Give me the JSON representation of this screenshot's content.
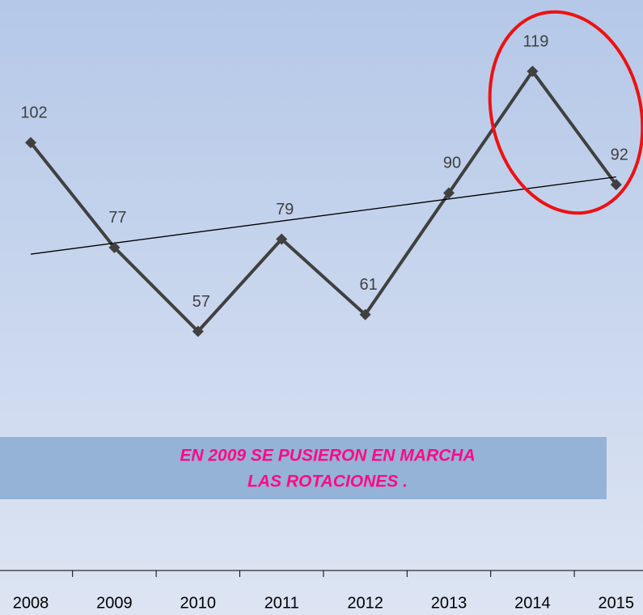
{
  "chart_data": {
    "type": "line",
    "categories": [
      "2008",
      "2009",
      "2010",
      "2011",
      "2012",
      "2013",
      "2014",
      "2015"
    ],
    "series": [
      {
        "color": "#404040",
        "values": [
          102,
          77,
          57,
          79,
          61,
          90,
          119,
          92
        ]
      }
    ],
    "ylim": [
      0,
      136
    ],
    "trendline": true,
    "annotation": [
      "EN 2009 SE PUSIERON EN MARCHA",
      "LAS ROTACIONES ."
    ]
  }
}
